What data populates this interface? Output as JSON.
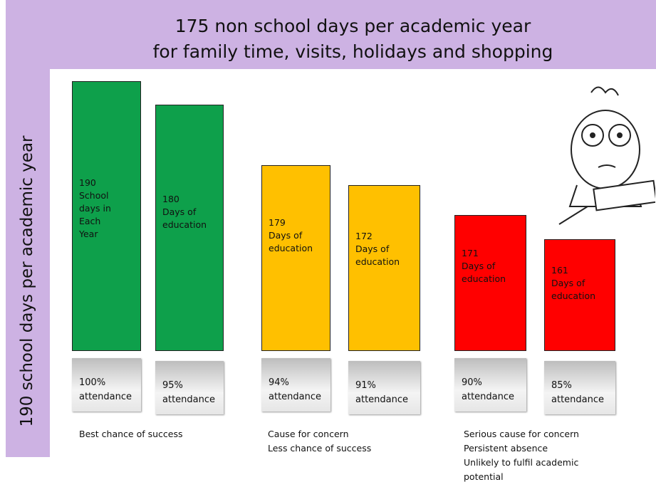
{
  "header": {
    "title_lines": [
      "175 non school days per academic  year",
      "for family time, visits, holidays and shopping"
    ]
  },
  "side_label": "190 school days per academic year",
  "bars": [
    {
      "label_lines": [
        "190",
        "School",
        "days in",
        "Each",
        "Year"
      ],
      "attendance_lines": [
        "100%",
        "attendance"
      ],
      "color": "#0ea04b"
    },
    {
      "label_lines": [
        "180",
        "Days of",
        "education"
      ],
      "attendance_lines": [
        "95%",
        "attendance"
      ],
      "color": "#0ea04b"
    },
    {
      "label_lines": [
        "179",
        "Days of",
        "education"
      ],
      "attendance_lines": [
        "94%",
        "attendance"
      ],
      "color": "#ffc000"
    },
    {
      "label_lines": [
        "172",
        "Days of",
        "education"
      ],
      "attendance_lines": [
        "91%",
        "attendance"
      ],
      "color": "#ffc000"
    },
    {
      "label_lines": [
        "171",
        "Days of",
        "education"
      ],
      "attendance_lines": [
        "90%",
        "attendance"
      ],
      "color": "#ff0000"
    },
    {
      "label_lines": [
        "161",
        "Days of",
        "education"
      ],
      "attendance_lines": [
        "85%",
        "attendance"
      ],
      "color": "#ff0000"
    }
  ],
  "captions": [
    [
      "Best chance of success"
    ],
    [
      "Cause for concern",
      "Less chance of success"
    ],
    [
      "Serious cause for concern",
      "Persistent absence",
      "Unlikely to fulfil academic",
      "potential"
    ]
  ]
}
